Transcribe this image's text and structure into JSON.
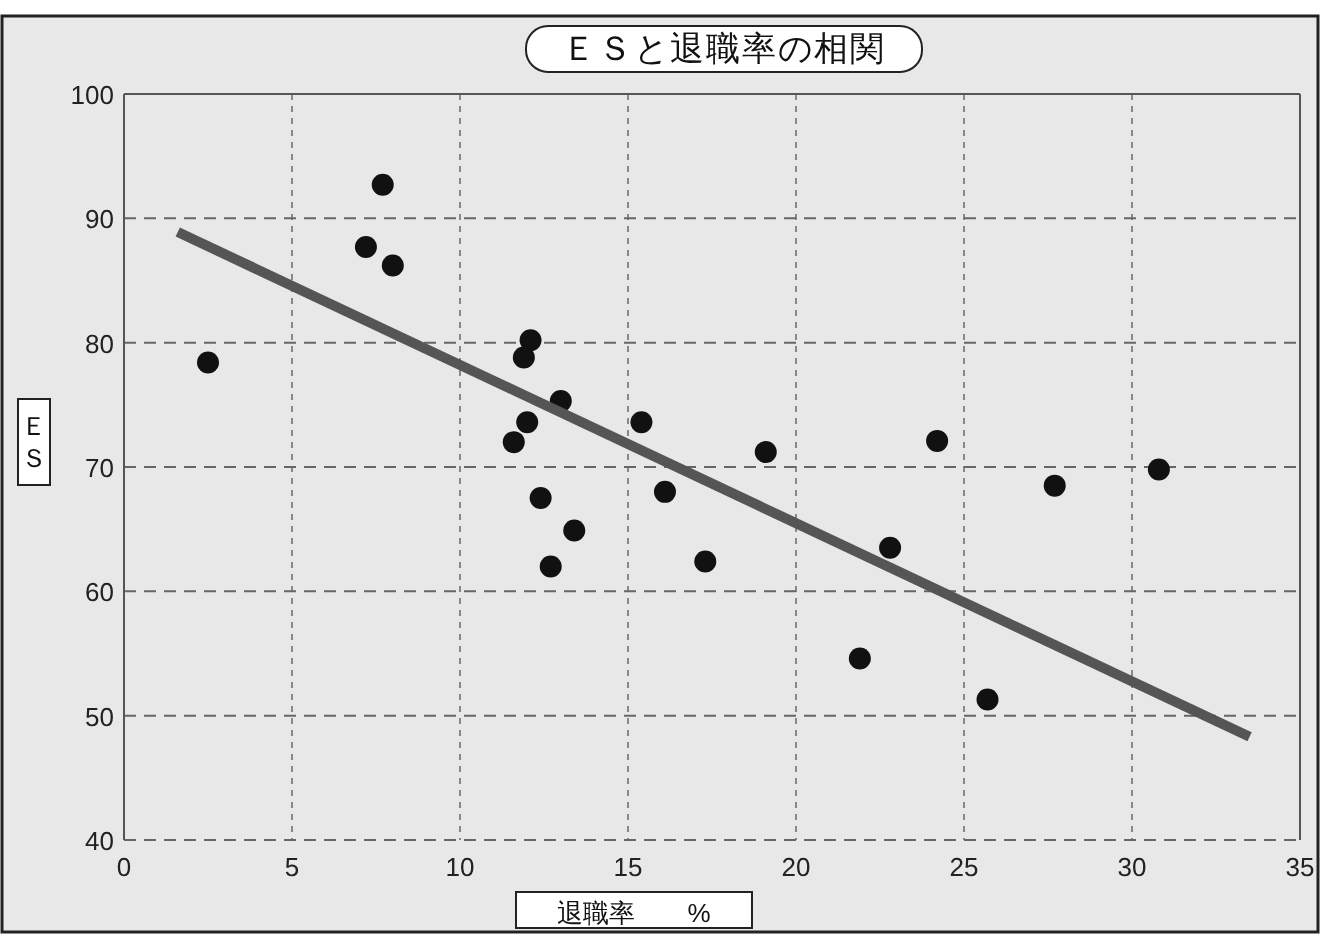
{
  "chart_data": {
    "type": "scatter",
    "title": "ＥＳと退職率の相関",
    "xlabel": "退職率　　%",
    "ylabel": "ＥＳ",
    "xlim": [
      0,
      35
    ],
    "ylim": [
      40,
      100
    ],
    "xticks": [
      0,
      5,
      10,
      15,
      20,
      25,
      30,
      35
    ],
    "yticks": [
      40,
      50,
      60,
      70,
      80,
      90,
      100
    ],
    "grid": true,
    "series": [
      {
        "marker": "circle",
        "color": "#111111",
        "x": [
          2.5,
          7.7,
          7.2,
          8.0,
          12.1,
          11.9,
          13.0,
          12.0,
          11.6,
          15.4,
          12.4,
          13.4,
          12.7,
          16.1,
          19.1,
          17.3,
          24.2,
          22.8,
          21.9,
          25.7,
          27.7,
          30.8
        ],
        "values": [
          78.4,
          92.7,
          87.7,
          86.2,
          80.2,
          78.8,
          75.3,
          73.6,
          72.0,
          73.6,
          67.5,
          64.9,
          62.0,
          68.0,
          71.2,
          62.4,
          72.1,
          63.5,
          54.6,
          51.3,
          68.5,
          69.8
        ]
      },
      {
        "type": "line",
        "color": "#555555",
        "x": [
          1.6,
          33.5
        ],
        "values": [
          88.9,
          48.3
        ]
      }
    ]
  }
}
